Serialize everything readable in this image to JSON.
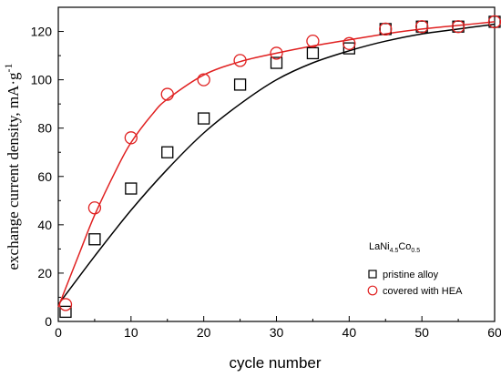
{
  "chart_data": {
    "type": "scatter",
    "xlabel": "cycle number",
    "ylabel_main": "exchange current density, mA·g",
    "ylabel_sup": "-1",
    "xlim": [
      0,
      60
    ],
    "ylim": [
      0,
      130
    ],
    "xticks": [
      0,
      10,
      20,
      30,
      40,
      50,
      60
    ],
    "yticks": [
      0,
      20,
      40,
      60,
      80,
      100,
      120
    ],
    "minor_ticks": true,
    "grid": false,
    "legend_position": "bottom-right",
    "legend_title": {
      "prefix": "LaNi",
      "sub1": "4.5",
      "mid": "Co",
      "sub2": "0.5"
    },
    "series": [
      {
        "name": "pristine alloy",
        "marker": "square",
        "color": "#000000",
        "x": [
          1,
          5,
          10,
          15,
          20,
          25,
          30,
          35,
          40,
          45,
          50,
          55,
          60
        ],
        "y": [
          4,
          34,
          55,
          70,
          84,
          98,
          107,
          111,
          113,
          121,
          122,
          122,
          124
        ],
        "fit": [
          [
            0,
            7
          ],
          [
            5,
            27
          ],
          [
            10,
            46
          ],
          [
            15,
            63
          ],
          [
            20,
            78
          ],
          [
            25,
            90
          ],
          [
            30,
            100
          ],
          [
            35,
            107
          ],
          [
            40,
            112
          ],
          [
            45,
            116
          ],
          [
            50,
            119
          ],
          [
            55,
            121
          ],
          [
            60,
            123
          ]
        ]
      },
      {
        "name": "covered with HEA",
        "marker": "circle",
        "color": "#e02020",
        "x": [
          1,
          5,
          10,
          15,
          20,
          25,
          30,
          35,
          40,
          45,
          50,
          55,
          60
        ],
        "y": [
          7,
          47,
          76,
          94,
          100,
          108,
          111,
          116,
          115,
          121,
          122,
          122,
          124
        ],
        "fit": [
          [
            0,
            6
          ],
          [
            3,
            29
          ],
          [
            5,
            44
          ],
          [
            8,
            63
          ],
          [
            10,
            74
          ],
          [
            13,
            86
          ],
          [
            15,
            92
          ],
          [
            20,
            102
          ],
          [
            25,
            107.5
          ],
          [
            30,
            111
          ],
          [
            35,
            114
          ],
          [
            40,
            116.5
          ],
          [
            45,
            119
          ],
          [
            50,
            121
          ],
          [
            55,
            122.5
          ],
          [
            60,
            124
          ]
        ]
      }
    ]
  }
}
